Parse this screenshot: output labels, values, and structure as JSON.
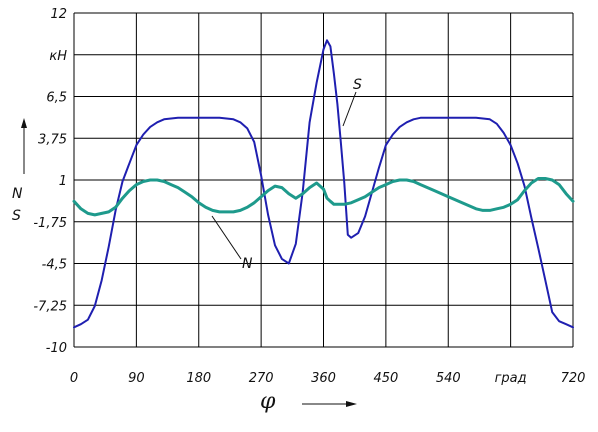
{
  "chart_data": {
    "type": "line",
    "xlim": [
      0,
      720
    ],
    "ylim": [
      -10,
      12
    ],
    "grid": true,
    "x_ticks": [
      0,
      90,
      180,
      270,
      360,
      450,
      540,
      630,
      720
    ],
    "y_ticks": [
      12,
      9.25,
      6.5,
      3.75,
      1,
      -1.75,
      -4.5,
      -7.25,
      -10
    ],
    "x_tick_labels": [
      "0",
      "90",
      "180",
      "270",
      "360",
      "450",
      "540",
      "град",
      "720"
    ],
    "y_tick_labels": [
      "12",
      "кН",
      "6,5",
      "3,75",
      "1",
      "-1,75",
      "-4,5",
      "-7,25",
      "-10"
    ],
    "xlabel": "φ",
    "ylabel_top": "N",
    "ylabel_bottom": "S",
    "series": [
      {
        "name": "S",
        "color": "#1f1fb0",
        "x": [
          0,
          10,
          20,
          30,
          40,
          50,
          60,
          70,
          80,
          90,
          100,
          110,
          120,
          130,
          150,
          180,
          210,
          230,
          240,
          250,
          260,
          270,
          280,
          290,
          300,
          310,
          320,
          330,
          340,
          350,
          360,
          365,
          370,
          375,
          380,
          385,
          390,
          395,
          400,
          410,
          420,
          430,
          440,
          450,
          460,
          470,
          480,
          490,
          500,
          520,
          550,
          580,
          600,
          610,
          620,
          630,
          640,
          650,
          660,
          670,
          680,
          690,
          700,
          710,
          720
        ],
        "y": [
          -8.7,
          -8.5,
          -8.2,
          -7.3,
          -5.6,
          -3.4,
          -1.0,
          0.9,
          2.1,
          3.3,
          4.0,
          4.5,
          4.8,
          5.0,
          5.1,
          5.1,
          5.1,
          5.0,
          4.8,
          4.4,
          3.5,
          1.3,
          -1.3,
          -3.3,
          -4.2,
          -4.5,
          -3.2,
          0.2,
          4.8,
          7.4,
          9.6,
          10.2,
          9.8,
          8.0,
          6.0,
          3.5,
          0.8,
          -2.6,
          -2.8,
          -2.5,
          -1.4,
          0.2,
          1.8,
          3.3,
          4.0,
          4.5,
          4.8,
          5.0,
          5.1,
          5.1,
          5.1,
          5.1,
          5.0,
          4.7,
          4.1,
          3.3,
          2.1,
          0.6,
          -1.5,
          -3.5,
          -5.6,
          -7.7,
          -8.3,
          -8.5,
          -8.7
        ]
      },
      {
        "name": "N",
        "color": "#1e9a8c",
        "x": [
          0,
          10,
          20,
          30,
          40,
          50,
          60,
          70,
          80,
          90,
          100,
          110,
          120,
          130,
          140,
          150,
          160,
          170,
          180,
          190,
          200,
          210,
          220,
          230,
          240,
          250,
          260,
          270,
          280,
          290,
          300,
          310,
          320,
          330,
          340,
          350,
          360,
          365,
          370,
          375,
          380,
          385,
          390,
          400,
          410,
          420,
          430,
          440,
          450,
          460,
          470,
          480,
          490,
          500,
          520,
          540,
          560,
          580,
          590,
          600,
          610,
          620,
          630,
          640,
          650,
          660,
          670,
          680,
          690,
          700,
          710,
          720
        ],
        "y": [
          -0.4,
          -0.9,
          -1.2,
          -1.3,
          -1.2,
          -1.1,
          -0.8,
          -0.2,
          0.3,
          0.7,
          0.9,
          1.0,
          1.0,
          0.9,
          0.7,
          0.5,
          0.2,
          -0.1,
          -0.5,
          -0.8,
          -1.0,
          -1.1,
          -1.1,
          -1.1,
          -1.0,
          -0.8,
          -0.5,
          -0.1,
          0.3,
          0.6,
          0.5,
          0.1,
          -0.2,
          0.1,
          0.5,
          0.8,
          0.4,
          -0.2,
          -0.4,
          -0.6,
          -0.6,
          -0.6,
          -0.6,
          -0.5,
          -0.3,
          -0.1,
          0.2,
          0.5,
          0.7,
          0.9,
          1.0,
          1.0,
          0.9,
          0.7,
          0.3,
          -0.1,
          -0.5,
          -0.9,
          -1.0,
          -1.0,
          -0.9,
          -0.8,
          -0.6,
          -0.3,
          0.3,
          0.8,
          1.1,
          1.1,
          1.0,
          0.7,
          0.1,
          -0.4
        ]
      }
    ]
  }
}
